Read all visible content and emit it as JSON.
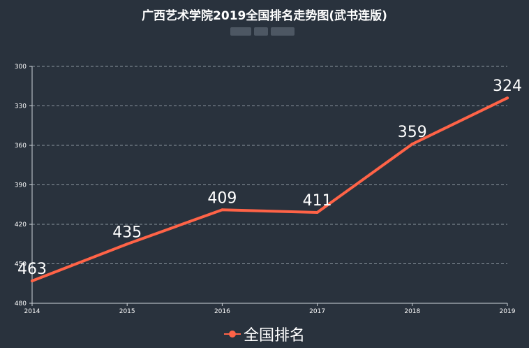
{
  "chart_data": {
    "type": "line",
    "title": "广西艺术学院2019全国排名走势图(武书连版)",
    "x": [
      "2014",
      "2015",
      "2016",
      "2017",
      "2018",
      "2019"
    ],
    "series": [
      {
        "name": "全国排名",
        "values": [
          463,
          435,
          409,
          411,
          359,
          324
        ],
        "color": "#ff6347"
      }
    ],
    "y_ticks": [
      300,
      330,
      360,
      390,
      420,
      450,
      480
    ],
    "ylim": [
      300,
      480
    ],
    "y_inverted": true,
    "grid": true,
    "legend_position": "bottom-center"
  },
  "colors": {
    "background": "#29323d",
    "line": "#ff6347",
    "text": "#ffffff",
    "axis": "#d0d5da",
    "grid": "#8c96a0"
  }
}
